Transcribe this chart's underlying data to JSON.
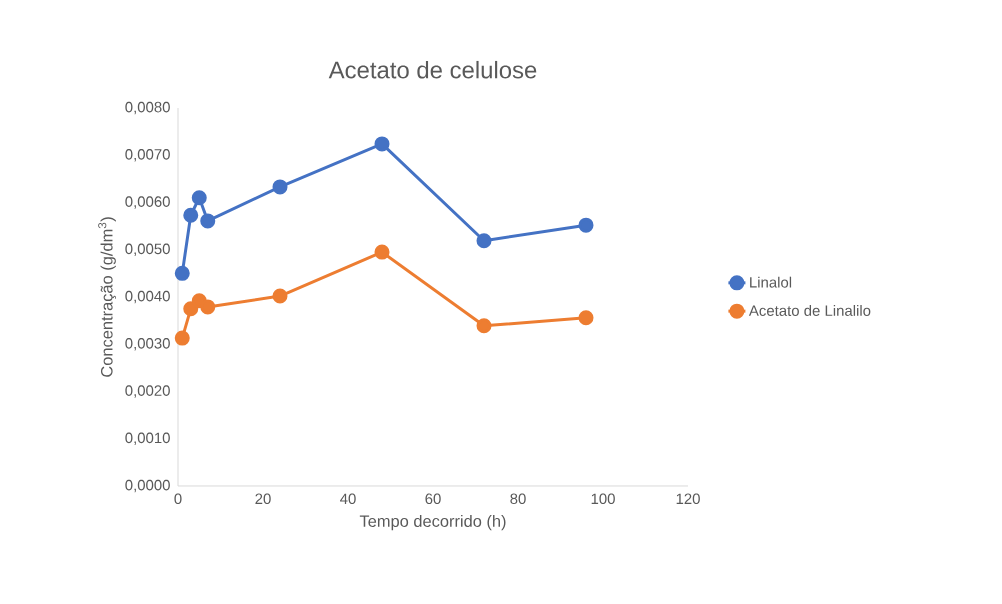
{
  "chart_data": {
    "type": "line",
    "title": "Acetato de celulose",
    "xlabel": "Tempo decorrido (h)",
    "ylabel": "Concentração (g/dm$^{3}$)",
    "x": [
      1,
      3,
      5,
      7,
      24,
      48,
      72,
      96
    ],
    "series": [
      {
        "name": "Linalol",
        "color": "#4472c4",
        "values": [
          0.0045,
          0.00573,
          0.0061,
          0.00561,
          0.00633,
          0.00724,
          0.00519,
          0.00552
        ]
      },
      {
        "name": "Acetato de Linalilo",
        "color": "#ed7d31",
        "values": [
          0.00313,
          0.00375,
          0.00392,
          0.00379,
          0.00402,
          0.00495,
          0.00339,
          0.00356
        ]
      }
    ],
    "xlim": [
      0,
      120
    ],
    "xticks": [
      0,
      20,
      40,
      60,
      80,
      100,
      120
    ],
    "ylim": [
      0,
      0.008
    ],
    "yticks": [
      {
        "value": 0,
        "label": "0,0000"
      },
      {
        "value": 0.001,
        "label": "0,0010"
      },
      {
        "value": 0.002,
        "label": "0,0020"
      },
      {
        "value": 0.003,
        "label": "0,0030"
      },
      {
        "value": 0.004,
        "label": "0,0040"
      },
      {
        "value": 0.005,
        "label": "0,0050"
      },
      {
        "value": 0.006,
        "label": "0,0060"
      },
      {
        "value": 0.007,
        "label": "0,0070"
      },
      {
        "value": 0.008,
        "label": "0,0080"
      }
    ],
    "grid": false,
    "legend": "right",
    "marker": "circle",
    "line_style": "solid"
  }
}
